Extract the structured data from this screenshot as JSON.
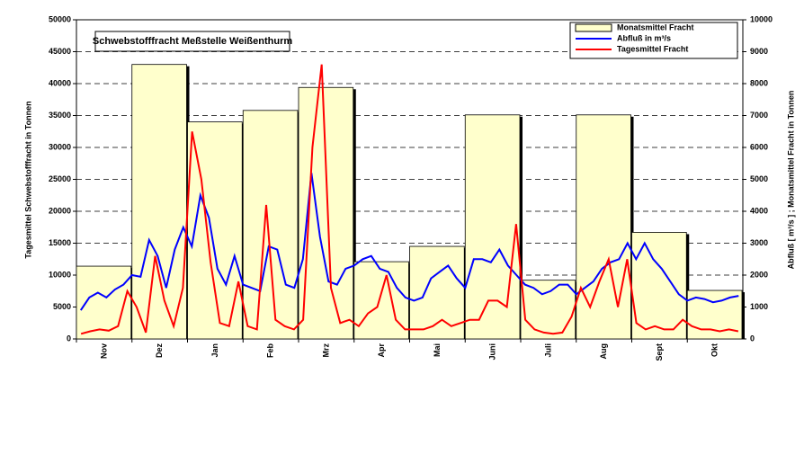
{
  "chart_data": [
    {
      "type": "bar",
      "title": "Schwebstofffracht Meßstelle Weißenthurm",
      "y_label": "Tagesmittel Schwebstofffracht in Tonnen",
      "y2_label": "Abfluß [ m³/s ] ; Monatsmittel Fracht in Tonnen",
      "categories": [
        "Nov",
        "Dez",
        "Jan",
        "Feb",
        "Mrz",
        "Apr",
        "Mai",
        "Juni",
        "Juli",
        "Aug",
        "Sept",
        "Okt"
      ],
      "series": [
        {
          "name": "Monatsmittel Fracht",
          "color": "#ffffcc",
          "axis": "y2",
          "values": [
            2280,
            8600,
            6800,
            7160,
            7880,
            2420,
            2900,
            7020,
            1840,
            7020,
            3340,
            1520
          ]
        }
      ],
      "ylim": [
        0,
        50000
      ],
      "yticks": [
        0,
        5000,
        10000,
        15000,
        20000,
        25000,
        30000,
        35000,
        40000,
        45000,
        50000
      ],
      "y2lim": [
        0,
        10000
      ],
      "y2ticks": [
        0,
        1000,
        2000,
        3000,
        4000,
        5000,
        6000,
        7000,
        8000,
        9000,
        10000
      ],
      "grid": true,
      "legend": "top-right"
    },
    {
      "type": "line",
      "series": [
        {
          "name": "Abfluß in m³/s",
          "color": "#0000ff",
          "axis": "y2",
          "values": [
            900,
            1300,
            1450,
            1300,
            1550,
            1700,
            2000,
            1950,
            3100,
            2600,
            1600,
            2800,
            3500,
            2900,
            4500,
            3800,
            2200,
            1700,
            2600,
            1700,
            1600,
            1500,
            2900,
            2800,
            1700,
            1600,
            2500,
            5200,
            3200,
            1800,
            1700,
            2200,
            2300,
            2500,
            2600,
            2200,
            2100,
            1600,
            1300,
            1200,
            1300,
            1900,
            2100,
            2300,
            1900,
            1600,
            2500,
            2500,
            2400,
            2800,
            2300,
            2000,
            1700,
            1600,
            1400,
            1500,
            1700,
            1700,
            1400,
            1600,
            1800,
            2200,
            2400,
            2500,
            3000,
            2500,
            3000,
            2500,
            2200,
            1800,
            1400,
            1200,
            1300,
            1250,
            1150,
            1200,
            1300,
            1350
          ]
        },
        {
          "name": "Tagesmittel Fracht",
          "color": "#ff0000",
          "values": [
            800,
            1200,
            1500,
            1300,
            2000,
            7500,
            5000,
            1000,
            13000,
            6000,
            2000,
            8000,
            32500,
            25000,
            12000,
            2500,
            2000,
            9000,
            2000,
            1500,
            21000,
            3000,
            2000,
            1500,
            3000,
            30000,
            43000,
            8000,
            2500,
            3000,
            2000,
            4000,
            5000,
            10000,
            3000,
            1500,
            1500,
            1500,
            2000,
            3000,
            2000,
            2500,
            3000,
            3000,
            6000,
            6000,
            5000,
            18000,
            3000,
            1500,
            1000,
            800,
            1000,
            3500,
            8000,
            5000,
            9000,
            12500,
            5000,
            12500,
            2500,
            1500,
            2000,
            1500,
            1500,
            3000,
            2000,
            1500,
            1500,
            1200,
            1500,
            1200
          ]
        }
      ]
    }
  ]
}
